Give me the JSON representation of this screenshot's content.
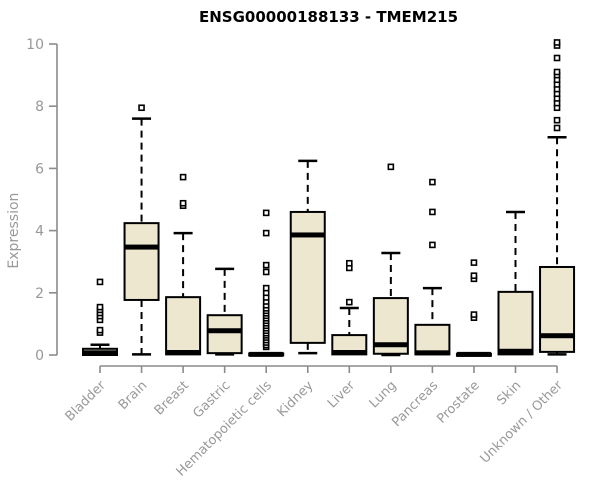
{
  "chart_data": {
    "type": "boxplot",
    "title": "ENSG00000188133 - TMEM215",
    "xlabel": "",
    "ylabel": "Expression",
    "ylim": [
      0,
      10
    ],
    "yticks": [
      0,
      2,
      4,
      6,
      8,
      10
    ],
    "grid": false,
    "legend": "none",
    "categories": [
      "Bladder",
      "Brain",
      "Breast",
      "Gastric",
      "Hematopoietic cells",
      "Kidney",
      "Liver",
      "Lung",
      "Pancreas",
      "Prostate",
      "Skin",
      "Unknown / Other"
    ],
    "boxes": [
      {
        "name": "Bladder",
        "q1": 0.0,
        "median": 0.07,
        "q3": 0.2,
        "whisker_low": 0.0,
        "whisker_high": 0.33,
        "outliers": [
          0.72,
          0.8,
          1.13,
          1.25,
          1.35,
          1.45,
          1.54,
          2.35
        ]
      },
      {
        "name": "Brain",
        "q1": 1.77,
        "median": 3.47,
        "q3": 4.24,
        "whisker_low": 0.02,
        "whisker_high": 7.6,
        "outliers": [
          7.95
        ]
      },
      {
        "name": "Breast",
        "q1": 0.02,
        "median": 0.08,
        "q3": 1.86,
        "whisker_low": 0.0,
        "whisker_high": 3.92,
        "outliers": [
          4.8,
          4.88,
          5.72
        ]
      },
      {
        "name": "Gastric",
        "q1": 0.06,
        "median": 0.78,
        "q3": 1.28,
        "whisker_low": 0.02,
        "whisker_high": 2.77,
        "outliers": []
      },
      {
        "name": "Hematopoietic cells",
        "q1": 0.0,
        "median": 0.02,
        "q3": 0.05,
        "whisker_low": 0.0,
        "whisker_high": 0.05,
        "outliers": [
          0.26,
          0.32,
          0.4,
          0.48,
          0.56,
          0.63,
          0.7,
          0.78,
          0.86,
          0.94,
          1.02,
          1.1,
          1.18,
          1.26,
          1.34,
          1.42,
          1.5,
          1.6,
          1.72,
          1.85,
          2.0,
          2.15,
          2.67,
          2.89,
          3.92,
          4.57
        ]
      },
      {
        "name": "Kidney",
        "q1": 0.39,
        "median": 3.86,
        "q3": 4.6,
        "whisker_low": 0.06,
        "whisker_high": 6.24,
        "outliers": []
      },
      {
        "name": "Liver",
        "q1": 0.02,
        "median": 0.08,
        "q3": 0.64,
        "whisker_low": 0.0,
        "whisker_high": 1.51,
        "outliers": [
          1.7,
          2.8,
          2.95
        ]
      },
      {
        "name": "Lung",
        "q1": 0.04,
        "median": 0.33,
        "q3": 1.83,
        "whisker_low": 0.0,
        "whisker_high": 3.28,
        "outliers": [
          6.05
        ]
      },
      {
        "name": "Pancreas",
        "q1": 0.02,
        "median": 0.07,
        "q3": 0.97,
        "whisker_low": 0.0,
        "whisker_high": 2.15,
        "outliers": [
          3.54,
          4.6,
          5.56
        ]
      },
      {
        "name": "Prostate",
        "q1": 0.0,
        "median": 0.02,
        "q3": 0.04,
        "whisker_low": 0.0,
        "whisker_high": 0.04,
        "outliers": [
          1.2,
          1.3,
          2.45,
          2.55,
          2.97
        ]
      },
      {
        "name": "Skin",
        "q1": 0.02,
        "median": 0.12,
        "q3": 2.03,
        "whisker_low": 0.0,
        "whisker_high": 4.6,
        "outliers": []
      },
      {
        "name": "Unknown / Other",
        "q1": 0.1,
        "median": 0.62,
        "q3": 2.83,
        "whisker_low": 0.02,
        "whisker_high": 7.0,
        "outliers": [
          7.3,
          7.55,
          7.95,
          8.1,
          8.25,
          8.4,
          8.55,
          8.7,
          8.85,
          9.0,
          9.1,
          9.55,
          9.95,
          10.05
        ]
      }
    ],
    "colors": {
      "box_fill": "#EDE7D0",
      "box_stroke": "#000000",
      "median": "#000000",
      "whisker": "#000000",
      "outlier_stroke": "#000000",
      "outlier_fill": "#ffffff",
      "axis_line": "#8B8B8B",
      "tick_label": "#999999",
      "title": "#000000",
      "background": "#ffffff"
    }
  }
}
